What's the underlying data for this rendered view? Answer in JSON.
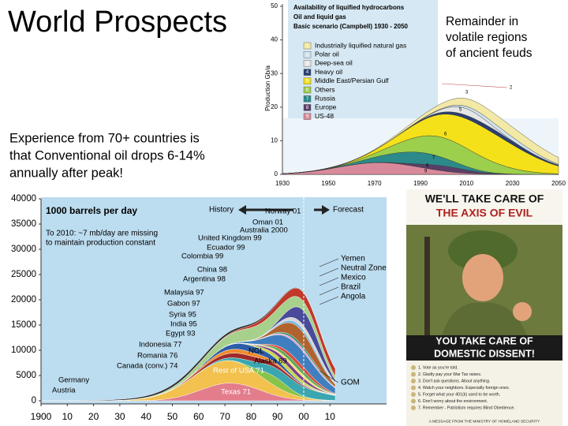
{
  "title": "World Prospects",
  "body_text": [
    "Experience from 70+ countries is",
    "that Conventional oil drops 6-14%",
    "annually after peak!"
  ],
  "callout": [
    "Remainder in",
    "volatile regions",
    "of ancient feuds"
  ],
  "campbell_chart": {
    "title_lines": [
      "Availability of liquified hydrocarbons",
      "Oil and liquid gas",
      "Basic scenario (Campbell) 1930 - 2050"
    ],
    "y_axis_label": "Production Gb/a",
    "y_ticks": [
      "50",
      "40",
      "30",
      "20",
      "10",
      "0"
    ],
    "x_ticks": [
      "1930",
      "1950",
      "1970",
      "1990",
      "2010",
      "2030",
      "2050"
    ],
    "legend": [
      {
        "number": "1",
        "label": "Industrially liquified natural gas"
      },
      {
        "number": "2",
        "label": "Polar oil"
      },
      {
        "number": "3",
        "label": "Deep-sea oil"
      },
      {
        "number": "4",
        "label": "Heavy oil"
      },
      {
        "number": "5",
        "label": "Middle East/Persian Gulf"
      },
      {
        "number": "6",
        "label": "Others"
      },
      {
        "number": "7",
        "label": "Russia"
      },
      {
        "number": "8",
        "label": "Europe"
      },
      {
        "number": "9",
        "label": "US-48"
      }
    ],
    "curve_labels": [
      "2",
      "3",
      "5",
      "6",
      "7",
      "8",
      "9"
    ]
  },
  "country_chart": {
    "unit_label": "1000 barrels per day",
    "history": "History",
    "forecast": "Forecast",
    "note_lines": [
      "To 2010: ~7 mb/day are missing",
      "to maintain production constant"
    ],
    "y_ticks": [
      "40000",
      "35000",
      "30000",
      "25000",
      "20000",
      "15000",
      "10000",
      "5000",
      "0"
    ],
    "x_ticks": [
      "1900",
      "10",
      "20",
      "30",
      "40",
      "50",
      "60",
      "70",
      "80",
      "90",
      "00",
      "10"
    ],
    "peak_labels": [
      "Norway 01",
      "Oman 01",
      "Australia 2000",
      "United Kingdom 99",
      "Ecuador 99",
      "Colombia 99",
      "China 98",
      "Argentina 98",
      "Malaysia 97",
      "Gabon 97",
      "Syria 95",
      "India 95",
      "Egypt 93",
      "Indonesia 77",
      "Romania 76",
      "Canada (conv.) 74",
      "Rest of USA 71",
      "Germany",
      "Austria",
      "Texas 71",
      "NGL",
      "Alaska 89"
    ],
    "right_labels": [
      "Yemen",
      "Neutral Zone",
      "Mexico",
      "Brazil",
      "Angola",
      "GOM"
    ]
  },
  "poster": {
    "top_line1": "WE'LL TAKE CARE OF",
    "top_line2": "THE AXIS OF EVIL",
    "bottom_line1": "YOU TAKE CARE OF",
    "bottom_line2": "DOMESTIC DISSENT!",
    "rules": [
      "1. Vote as you're told.",
      "2. Gladly pay your War Tax raises.",
      "3. Don't ask questions. About anything.",
      "4. Watch your neighbors. Especially foreign ones.",
      "5. Forget what your 401(k) used to be worth.",
      "6. Don't worry about the environment.",
      "7. Remember - Patriotism requires Blind Obedience."
    ],
    "footer": "A MESSAGE FROM THE MINISTRY OF HOMELAND SECURITY"
  }
}
